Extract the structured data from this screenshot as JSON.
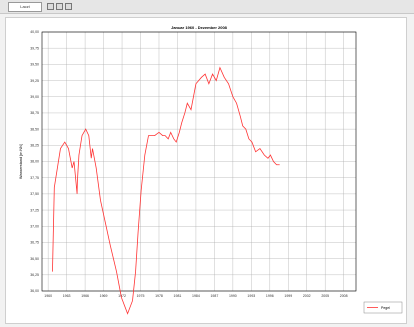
{
  "toolbar": {
    "button_label": "Laczt",
    "icons": [
      "chart-icon",
      "zoom-icon",
      "grid-icon"
    ]
  },
  "chart_data": {
    "type": "line",
    "title": "Januar 1960 - Dezember 2008",
    "xlabel": "",
    "ylabel": "Wasserstand [m NN]",
    "x_ticks": [
      "1960",
      "1963",
      "1966",
      "1969",
      "1972",
      "1975",
      "1978",
      "1981",
      "1984",
      "1987",
      "1990",
      "1993",
      "1996",
      "1999",
      "2002",
      "2005",
      "2008"
    ],
    "y_ticks": [
      "36,00",
      "36,25",
      "36,50",
      "36,75",
      "37,00",
      "37,25",
      "37,50",
      "37,75",
      "38,00",
      "38,25",
      "38,50",
      "38,75",
      "39,00",
      "39,25",
      "39,50",
      "39,75",
      "40,00"
    ],
    "xlim": [
      1959,
      2010
    ],
    "ylim": [
      36.0,
      40.0
    ],
    "grid": true,
    "legend_position": "bottom-right",
    "series_color": "#ff3333",
    "series": [
      {
        "name": "Pegel",
        "x": [
          1960.7,
          1961,
          1961.5,
          1962,
          1962.7,
          1963.3,
          1963.9,
          1964.2,
          1964.7,
          1964.75,
          1965,
          1965.5,
          1966.1,
          1966.6,
          1967.0,
          1967.2,
          1967.8,
          1968.5,
          1969.3,
          1970.1,
          1971.1,
          1971.9,
          1972.9,
          1973.7,
          1974.2,
          1974.6,
          1975.1,
          1975.7,
          1976.3,
          1976.8,
          1977.3,
          1978.0,
          1978.6,
          1979.0,
          1979.5,
          1979.9,
          1980.4,
          1980.8,
          1981.3,
          1981.7,
          1982.2,
          1982.6,
          1983.2,
          1984.0,
          1984.9,
          1985.5,
          1986.1,
          1986.7,
          1987.3,
          1987.9,
          1988.6,
          1989.3,
          1990.0,
          1990.6,
          1991.2,
          1991.6,
          1992.1,
          1992.6,
          1993.1,
          1993.7,
          1994.4,
          1995.1,
          1995.7,
          1996.1,
          1996.6,
          1997.1,
          1997.6
        ],
        "y": [
          36.3,
          37.6,
          37.9,
          38.2,
          38.3,
          38.2,
          37.9,
          38.0,
          37.5,
          37.7,
          38.1,
          38.4,
          38.5,
          38.4,
          38.05,
          38.2,
          37.9,
          37.4,
          37.05,
          36.7,
          36.3,
          35.9,
          35.65,
          35.85,
          36.3,
          36.9,
          37.55,
          38.1,
          38.4,
          38.4,
          38.4,
          38.45,
          38.4,
          38.4,
          38.35,
          38.45,
          38.35,
          38.3,
          38.45,
          38.6,
          38.75,
          38.9,
          38.8,
          39.2,
          39.3,
          39.35,
          39.2,
          39.35,
          39.25,
          39.45,
          39.3,
          39.2,
          39.0,
          38.9,
          38.7,
          38.55,
          38.5,
          38.35,
          38.3,
          38.15,
          38.2,
          38.1,
          38.05,
          38.1,
          38.0,
          37.95,
          37.95
        ]
      }
    ]
  }
}
